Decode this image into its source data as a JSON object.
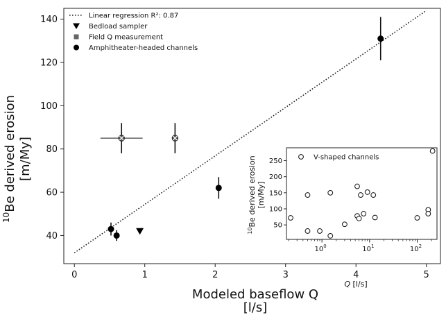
{
  "chart_data": [
    {
      "type": "scatter",
      "xlabel_line1": "Modeled baseflow Q",
      "xlabel_line2": "[l/s]",
      "ylabel_line1": "10Be derived erosion",
      "ylabel_line2": "[m/My]",
      "ylabel_super": "10",
      "ylabel_rest": "Be derived erosion",
      "xlim": [
        -0.15,
        5.2
      ],
      "ylim": [
        27,
        145
      ],
      "xticks": [
        0,
        1,
        2,
        3,
        4,
        5
      ],
      "yticks": [
        40,
        60,
        80,
        100,
        120,
        140
      ],
      "grid": false,
      "legend_position": "top-left",
      "legend": [
        {
          "label": "Linear regression R²: 0.87",
          "marker": "dotted-line"
        },
        {
          "label": "Bedload sampler",
          "marker": "down-triangle"
        },
        {
          "label": "Field Q measurement",
          "marker": "square"
        },
        {
          "label": "Amphitheater-headed channels",
          "marker": "circle"
        }
      ],
      "regression": {
        "x": [
          0.0,
          5.0
        ],
        "y": [
          32,
          144
        ]
      },
      "series": [
        {
          "name": "Amphitheater-headed channels",
          "marker": "circle",
          "points": [
            {
              "x": 0.52,
              "y": 43,
              "yerr": 3
            },
            {
              "x": 0.6,
              "y": 40,
              "yerr": 2.5
            },
            {
              "x": 2.05,
              "y": 62,
              "yerr": 5
            },
            {
              "x": 4.35,
              "y": 131,
              "yerr": 10
            }
          ]
        },
        {
          "name": "Bedload sampler",
          "marker": "down-triangle",
          "points": [
            {
              "x": 0.93,
              "y": 42
            }
          ]
        },
        {
          "name": "Field Q measurement",
          "marker": "circle-x",
          "points": [
            {
              "x": 0.67,
              "y": 85,
              "yerr": 7,
              "xerr": 0.3
            },
            {
              "x": 1.43,
              "y": 85,
              "yerr": 7,
              "xerr": 0.03
            }
          ]
        }
      ]
    },
    {
      "type": "scatter",
      "inset": true,
      "xlabel": "Q [l/s]",
      "ylabel_line1": "10Be derived erosion",
      "ylabel_line2": "[m/My]",
      "ylabel_super": "10",
      "ylabel_rest": "Be derived erosion",
      "xscale": "log",
      "xlim": [
        0.18,
        260
      ],
      "ylim": [
        5,
        290
      ],
      "xtick_labels": [
        "10",
        "10",
        "10"
      ],
      "xtick_exponents": [
        "0",
        "1",
        "2"
      ],
      "xtick_values": [
        1,
        10,
        100
      ],
      "yticks": [
        50,
        100,
        150,
        200,
        250
      ],
      "legend": [
        {
          "label": "V-shaped channels",
          "marker": "open-circle"
        }
      ],
      "series": [
        {
          "name": "V-shaped channels",
          "marker": "open-circle",
          "points": [
            {
              "x": 0.22,
              "y": 72
            },
            {
              "x": 0.5,
              "y": 143
            },
            {
              "x": 0.5,
              "y": 31
            },
            {
              "x": 0.9,
              "y": 31
            },
            {
              "x": 1.5,
              "y": 150
            },
            {
              "x": 1.5,
              "y": 16
            },
            {
              "x": 3.0,
              "y": 52
            },
            {
              "x": 5.5,
              "y": 170
            },
            {
              "x": 5.5,
              "y": 78
            },
            {
              "x": 6.0,
              "y": 70
            },
            {
              "x": 6.5,
              "y": 143
            },
            {
              "x": 7.5,
              "y": 85
            },
            {
              "x": 9.0,
              "y": 152
            },
            {
              "x": 12.0,
              "y": 143
            },
            {
              "x": 13.0,
              "y": 73
            },
            {
              "x": 100.0,
              "y": 72
            },
            {
              "x": 170.0,
              "y": 97
            },
            {
              "x": 170.0,
              "y": 85
            },
            {
              "x": 210.0,
              "y": 280
            }
          ]
        }
      ]
    }
  ]
}
